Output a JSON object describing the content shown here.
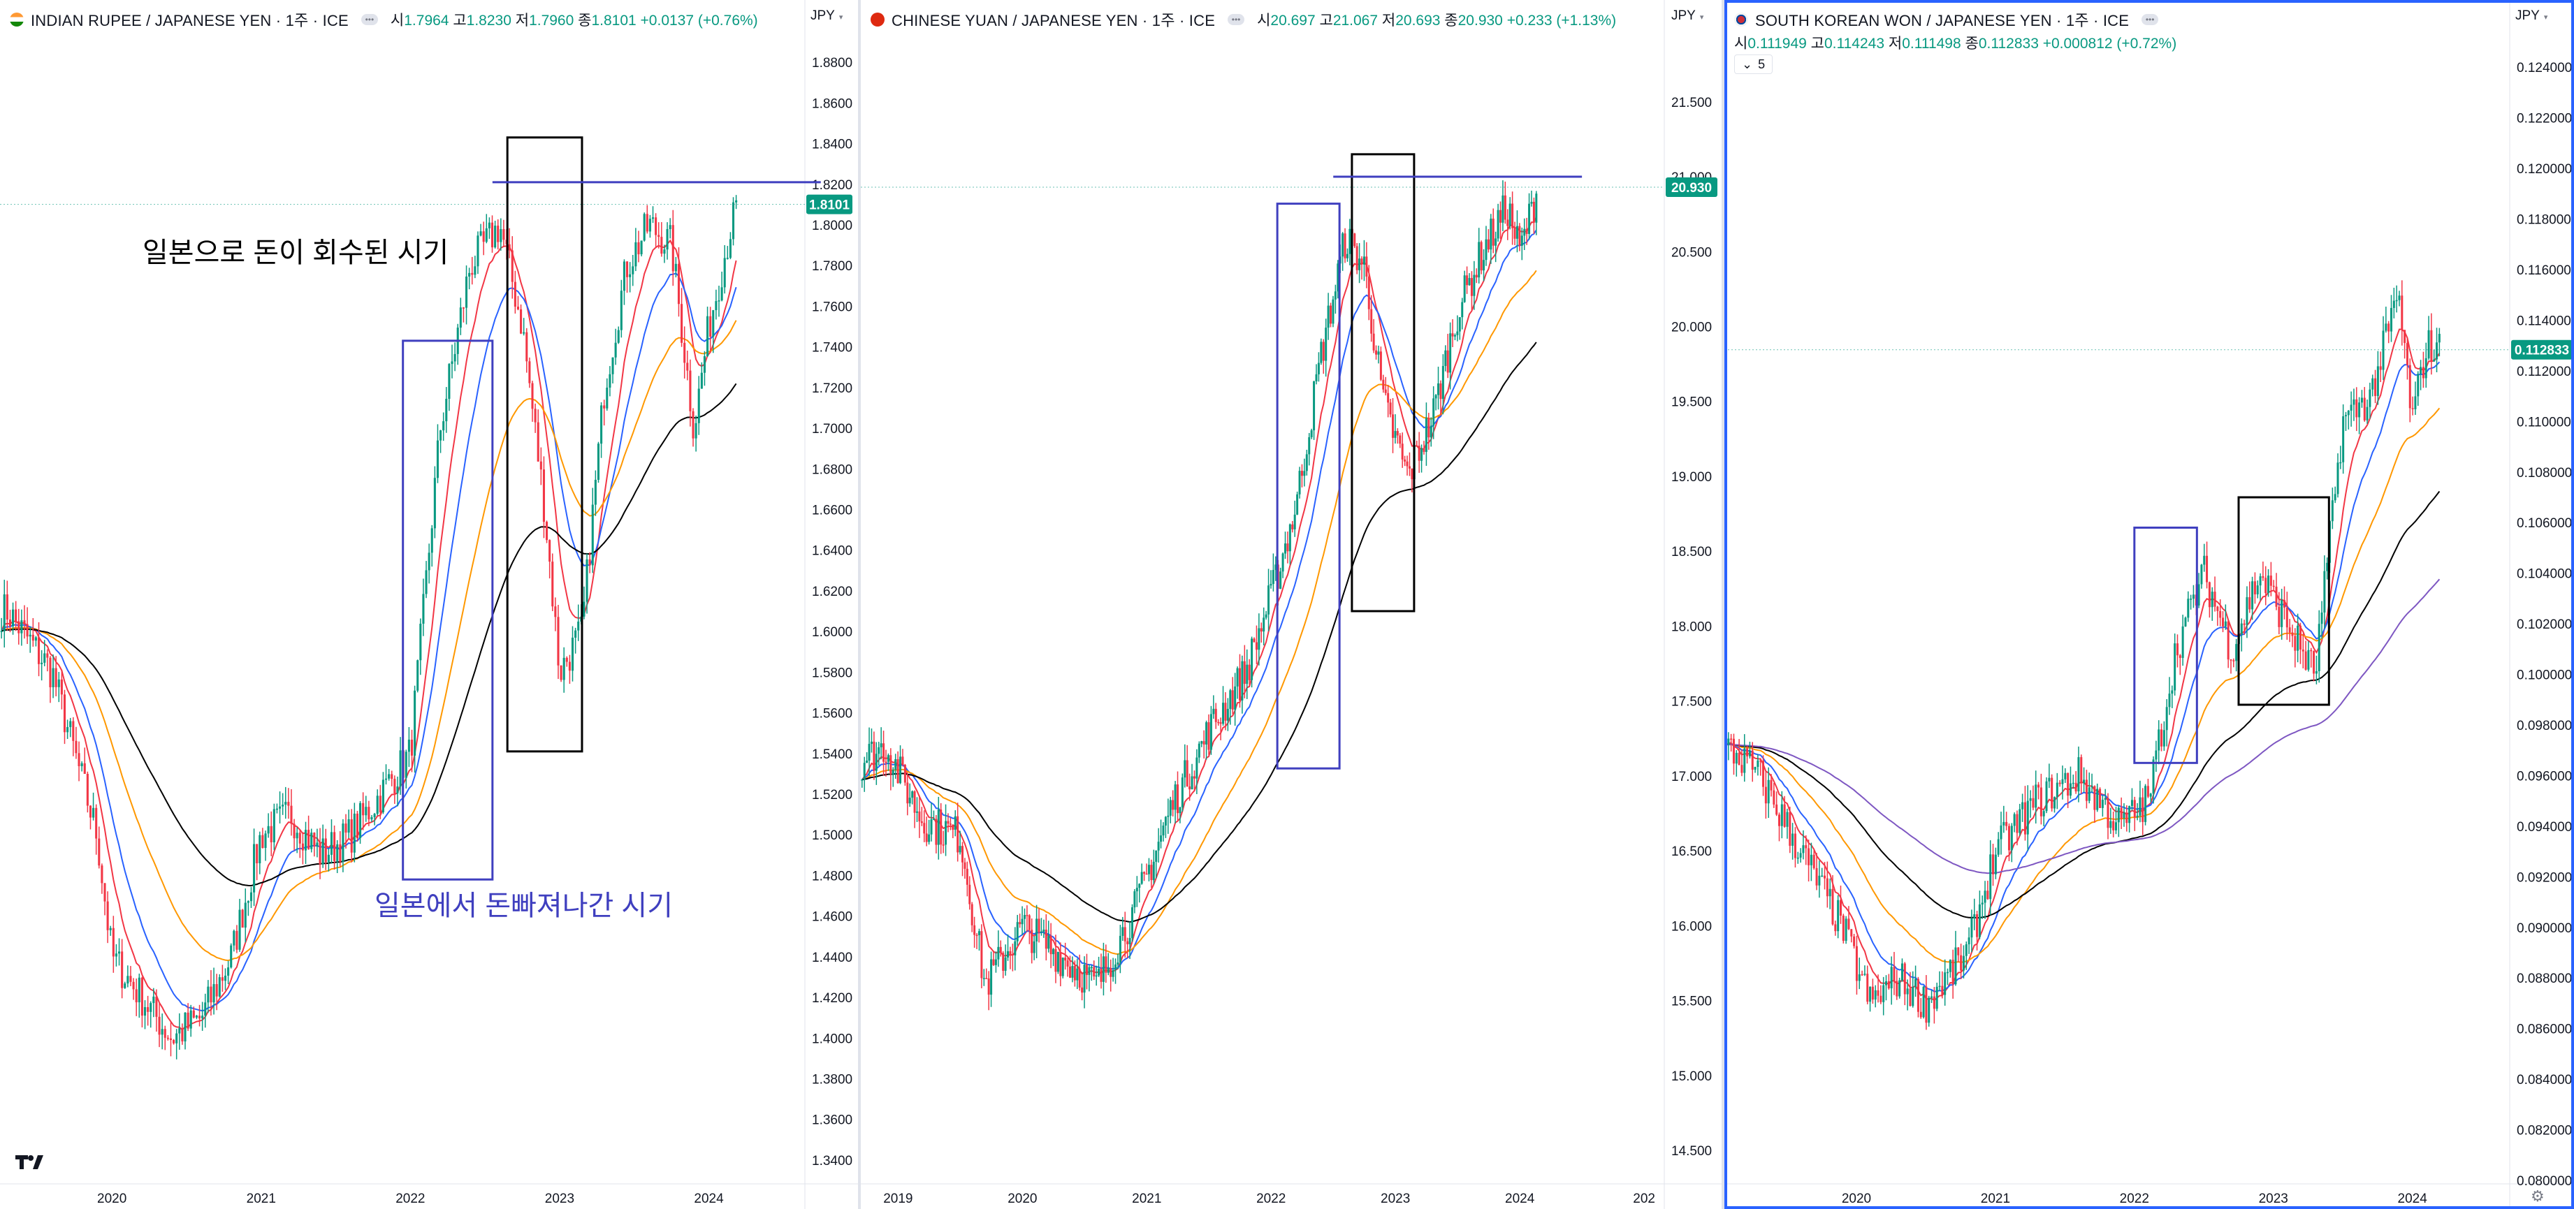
{
  "charts": [
    {
      "id": "inr",
      "title": "INDIAN RUPEE / JAPANESE YEN · 1주 · ICE",
      "flag_color": "#ff9933",
      "ohlc": [
        {
          "label": "시",
          "value": "1.7964"
        },
        {
          "label": "고",
          "value": "1.8230"
        },
        {
          "label": "저",
          "value": "1.7960"
        },
        {
          "label": "종",
          "value": "1.8101"
        }
      ],
      "change": "+0.0137 (+0.76%)",
      "currency": "JPY",
      "last_price": "1.8101",
      "y_ticks": [
        "1.8800",
        "1.8600",
        "1.8400",
        "1.8200",
        "1.8000",
        "1.7800",
        "1.7600",
        "1.7400",
        "1.7200",
        "1.7000",
        "1.6800",
        "1.6600",
        "1.6400",
        "1.6200",
        "1.6000",
        "1.5800",
        "1.5600",
        "1.5400",
        "1.5200",
        "1.5000",
        "1.4800",
        "1.4600",
        "1.4400",
        "1.4200",
        "1.4000",
        "1.3800",
        "1.3600",
        "1.3400"
      ],
      "x_ticks": [
        "2020",
        "2021",
        "2022",
        "2023",
        "2024"
      ],
      "annotations": {
        "black": "일본으로 돈이 회수된 시기",
        "blue": "일본에서 돈빠져나간 시기"
      }
    },
    {
      "id": "cny",
      "title": "CHINESE YUAN / JAPANESE YEN · 1주 · ICE",
      "flag_color": "#de2910",
      "ohlc": [
        {
          "label": "시",
          "value": "20.697"
        },
        {
          "label": "고",
          "value": "21.067"
        },
        {
          "label": "저",
          "value": "20.693"
        },
        {
          "label": "종",
          "value": "20.930"
        }
      ],
      "change": "+0.233 (+1.13%)",
      "currency": "JPY",
      "last_price": "20.930",
      "y_ticks": [
        "21.500",
        "21.000",
        "20.500",
        "20.000",
        "19.500",
        "19.000",
        "18.500",
        "18.000",
        "17.500",
        "17.000",
        "16.500",
        "16.000",
        "15.500",
        "15.000",
        "14.500"
      ],
      "x_ticks": [
        "2019",
        "2020",
        "2021",
        "2022",
        "2023",
        "2024",
        "202"
      ]
    },
    {
      "id": "krw",
      "title": "SOUTH KOREAN WON / JAPANESE YEN · 1주 · ICE",
      "flag_color": "#cd2e3a",
      "ohlc": [
        {
          "label": "시",
          "value": "0.111949"
        },
        {
          "label": "고",
          "value": "0.114243"
        },
        {
          "label": "저",
          "value": "0.111498"
        },
        {
          "label": "종",
          "value": "0.112833"
        }
      ],
      "change": "+0.000812 (+0.72%)",
      "currency": "JPY",
      "last_price": "0.112833",
      "indicator_count": "5",
      "y_ticks": [
        "0.124000",
        "0.122000",
        "0.120000",
        "0.118000",
        "0.116000",
        "0.114000",
        "0.112000",
        "0.110000",
        "0.108000",
        "0.106000",
        "0.104000",
        "0.102000",
        "0.100000",
        "0.098000",
        "0.096000",
        "0.094000",
        "0.092000",
        "0.090000",
        "0.088000",
        "0.086000",
        "0.084000",
        "0.082000",
        "0.080000"
      ],
      "x_ticks": [
        "2020",
        "2021",
        "2022",
        "2023",
        "2024"
      ]
    }
  ],
  "colors": {
    "up": "#089981",
    "down": "#f23645",
    "ma_fast": "#f23645",
    "ma_mid": "#2962ff",
    "ma_slow": "#ff9800",
    "ma_long": "#000000",
    "ma_extra": "#7e57c2",
    "annotation_black": "#000000",
    "annotation_blue": "#3f3fbf",
    "price_badge": "#089981"
  },
  "icons": {
    "logo": "tradingview-logo-icon",
    "settings": "gear-icon"
  },
  "chart_data": [
    {
      "type": "line",
      "title": "INDIAN RUPEE / JAPANESE YEN · 1주 · ICE",
      "x": [
        "2019.3",
        "2019.6",
        "2019.9",
        "2020.0",
        "2020.2",
        "2020.4",
        "2020.6",
        "2020.8",
        "2021.0",
        "2021.2",
        "2021.4",
        "2021.6",
        "2021.8",
        "2022.0",
        "2022.2",
        "2022.4",
        "2022.6",
        "2022.75",
        "2022.9",
        "2023.0",
        "2023.15",
        "2023.3",
        "2023.45",
        "2023.6",
        "2023.75",
        "2023.9",
        "2024.0",
        "2024.15",
        "2024.2"
      ],
      "series": [
        {
          "values": [
            1.61,
            1.58,
            1.5,
            1.44,
            1.42,
            1.4,
            1.41,
            1.44,
            1.5,
            1.51,
            1.49,
            1.5,
            1.52,
            1.54,
            1.7,
            1.78,
            1.8,
            1.75,
            1.66,
            1.58,
            1.6,
            1.72,
            1.78,
            1.8,
            1.79,
            1.7,
            1.75,
            1.8,
            1.81
          ]
        }
      ],
      "ylim": [
        1.33,
        1.89
      ],
      "annotations": [
        "일본으로 돈이 회수된 시기",
        "일본에서 돈빠져나간 시기"
      ]
    },
    {
      "type": "line",
      "title": "CHINESE YUAN / JAPANESE YEN · 1주 · ICE",
      "x": [
        "2018.7",
        "2018.9",
        "2019.2",
        "2019.5",
        "2019.7",
        "2020.0",
        "2020.3",
        "2020.6",
        "2020.9",
        "2021.2",
        "2021.5",
        "2021.8",
        "2022.0",
        "2022.2",
        "2022.4",
        "2022.6",
        "2022.75",
        "2022.9",
        "2023.1",
        "2023.3",
        "2023.5",
        "2023.7",
        "2023.9",
        "2024.0",
        "2024.15"
      ],
      "series": [
        {
          "values": [
            17.1,
            17.2,
            16.7,
            16.6,
            15.6,
            16.0,
            15.8,
            15.6,
            16.1,
            16.8,
            17.3,
            17.7,
            18.2,
            18.8,
            19.8,
            20.6,
            20.4,
            19.5,
            19.0,
            19.4,
            20.1,
            20.5,
            20.8,
            20.5,
            20.93
          ]
        }
      ],
      "ylim": [
        14.3,
        21.9
      ]
    },
    {
      "type": "line",
      "title": "SOUTH KOREAN WON / JAPANESE YEN · 1주 · ICE",
      "x": [
        "2019.1",
        "2019.3",
        "2019.6",
        "2019.9",
        "2020.1",
        "2020.3",
        "2020.5",
        "2020.8",
        "2021.0",
        "2021.3",
        "2021.6",
        "2021.9",
        "2022.1",
        "2022.3",
        "2022.5",
        "2022.7",
        "2022.9",
        "2023.1",
        "2023.3",
        "2023.5",
        "2023.7",
        "2023.9",
        "2024.0",
        "2024.1",
        "2024.2"
      ],
      "series": [
        {
          "values": [
            0.097,
            0.096,
            0.093,
            0.09,
            0.087,
            0.088,
            0.087,
            0.089,
            0.093,
            0.095,
            0.096,
            0.094,
            0.095,
            0.101,
            0.104,
            0.101,
            0.104,
            0.102,
            0.1,
            0.11,
            0.111,
            0.115,
            0.11,
            0.113,
            0.1128
          ]
        }
      ],
      "ylim": [
        0.08,
        0.125
      ]
    }
  ]
}
